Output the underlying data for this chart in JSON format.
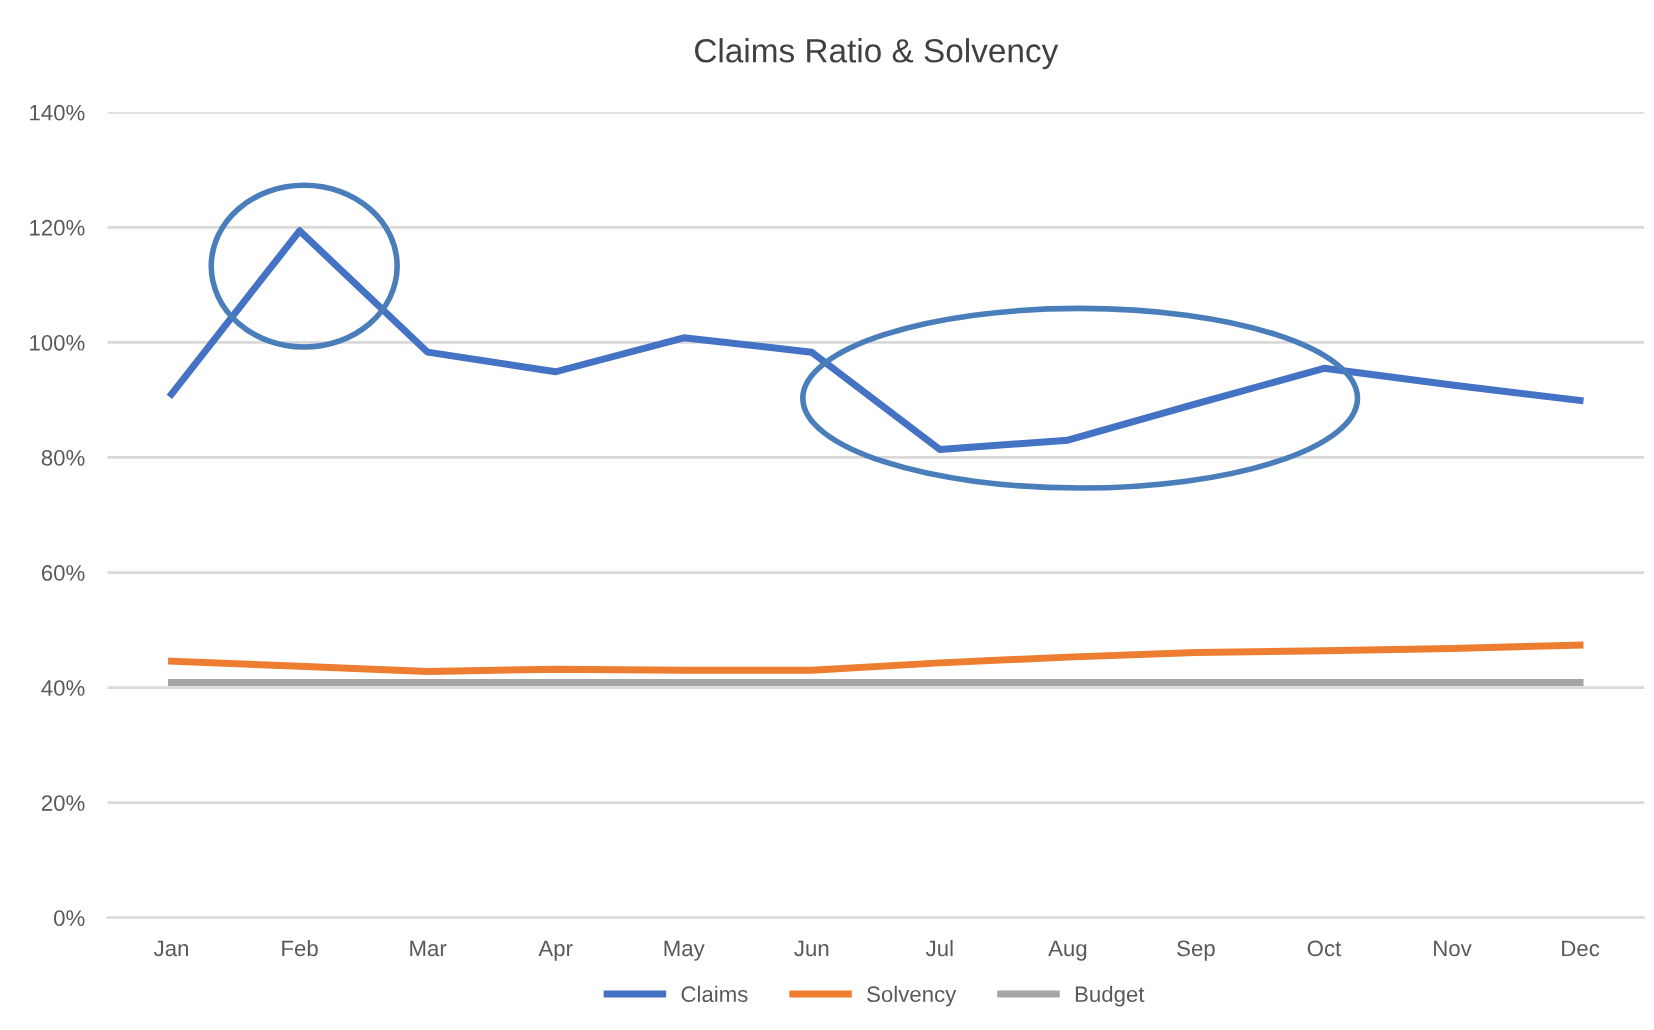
{
  "chart_data": {
    "type": "line",
    "title": "Claims Ratio & Solvency",
    "categories": [
      "Jan",
      "Feb",
      "Mar",
      "Apr",
      "May",
      "Jun",
      "Jul",
      "Aug",
      "Sep",
      "Oct",
      "Nov",
      "Dec"
    ],
    "series": [
      {
        "name": "Claims",
        "color": "#4472c4",
        "values": [
          91.0,
          119.4,
          98.3,
          94.9,
          100.8,
          98.3,
          81.4,
          83.0,
          89.3,
          95.5,
          92.6,
          89.9
        ]
      },
      {
        "name": "Solvency",
        "color": "#ed7d31",
        "values": [
          44.6,
          43.7,
          42.8,
          43.2,
          43.0,
          43.0,
          44.3,
          45.3,
          46.1,
          46.4,
          46.8,
          47.4
        ]
      },
      {
        "name": "Budget",
        "color": "#a5a5a5",
        "values": [
          40.9,
          40.9,
          40.9,
          40.9,
          40.9,
          40.9,
          40.9,
          40.9,
          40.9,
          40.9,
          40.9,
          40.9
        ]
      }
    ],
    "ylim": [
      0,
      140
    ],
    "yticks": [
      {
        "value": 0,
        "label": "0%"
      },
      {
        "value": 20,
        "label": "20%"
      },
      {
        "value": 40,
        "label": "40%"
      },
      {
        "value": 60,
        "label": "60%"
      },
      {
        "value": 80,
        "label": "80%"
      },
      {
        "value": 100,
        "label": "100%"
      },
      {
        "value": 120,
        "label": "120%"
      },
      {
        "value": 140,
        "label": "140%"
      }
    ],
    "grid": "y",
    "legend": "bottom",
    "marker": "none",
    "line_style": "solid"
  }
}
